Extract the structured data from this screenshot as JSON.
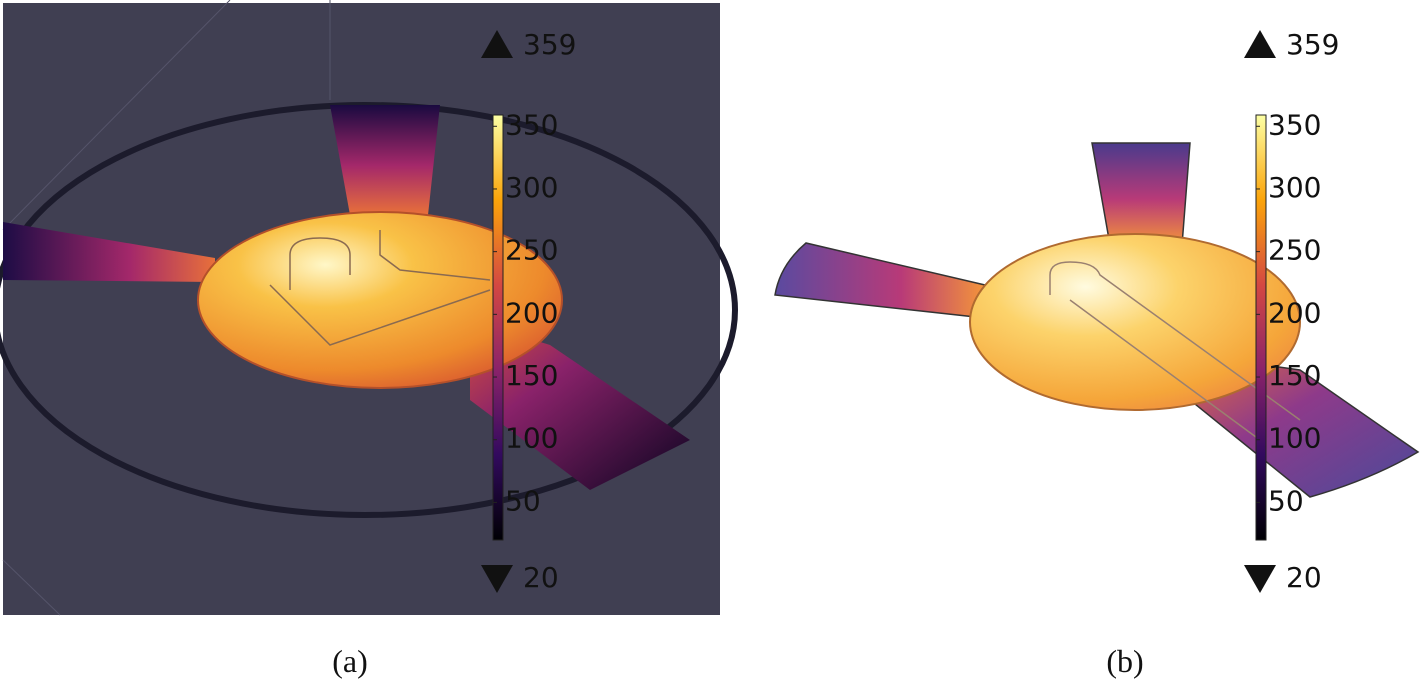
{
  "panels": [
    {
      "caption": "(a)",
      "max": 359,
      "min": 20,
      "ticks": [
        50,
        100,
        150,
        200,
        250,
        300,
        350
      ]
    },
    {
      "caption": "(b)",
      "max": 359,
      "min": 20,
      "ticks": [
        50,
        100,
        150,
        200,
        250,
        300,
        350
      ]
    }
  ]
}
